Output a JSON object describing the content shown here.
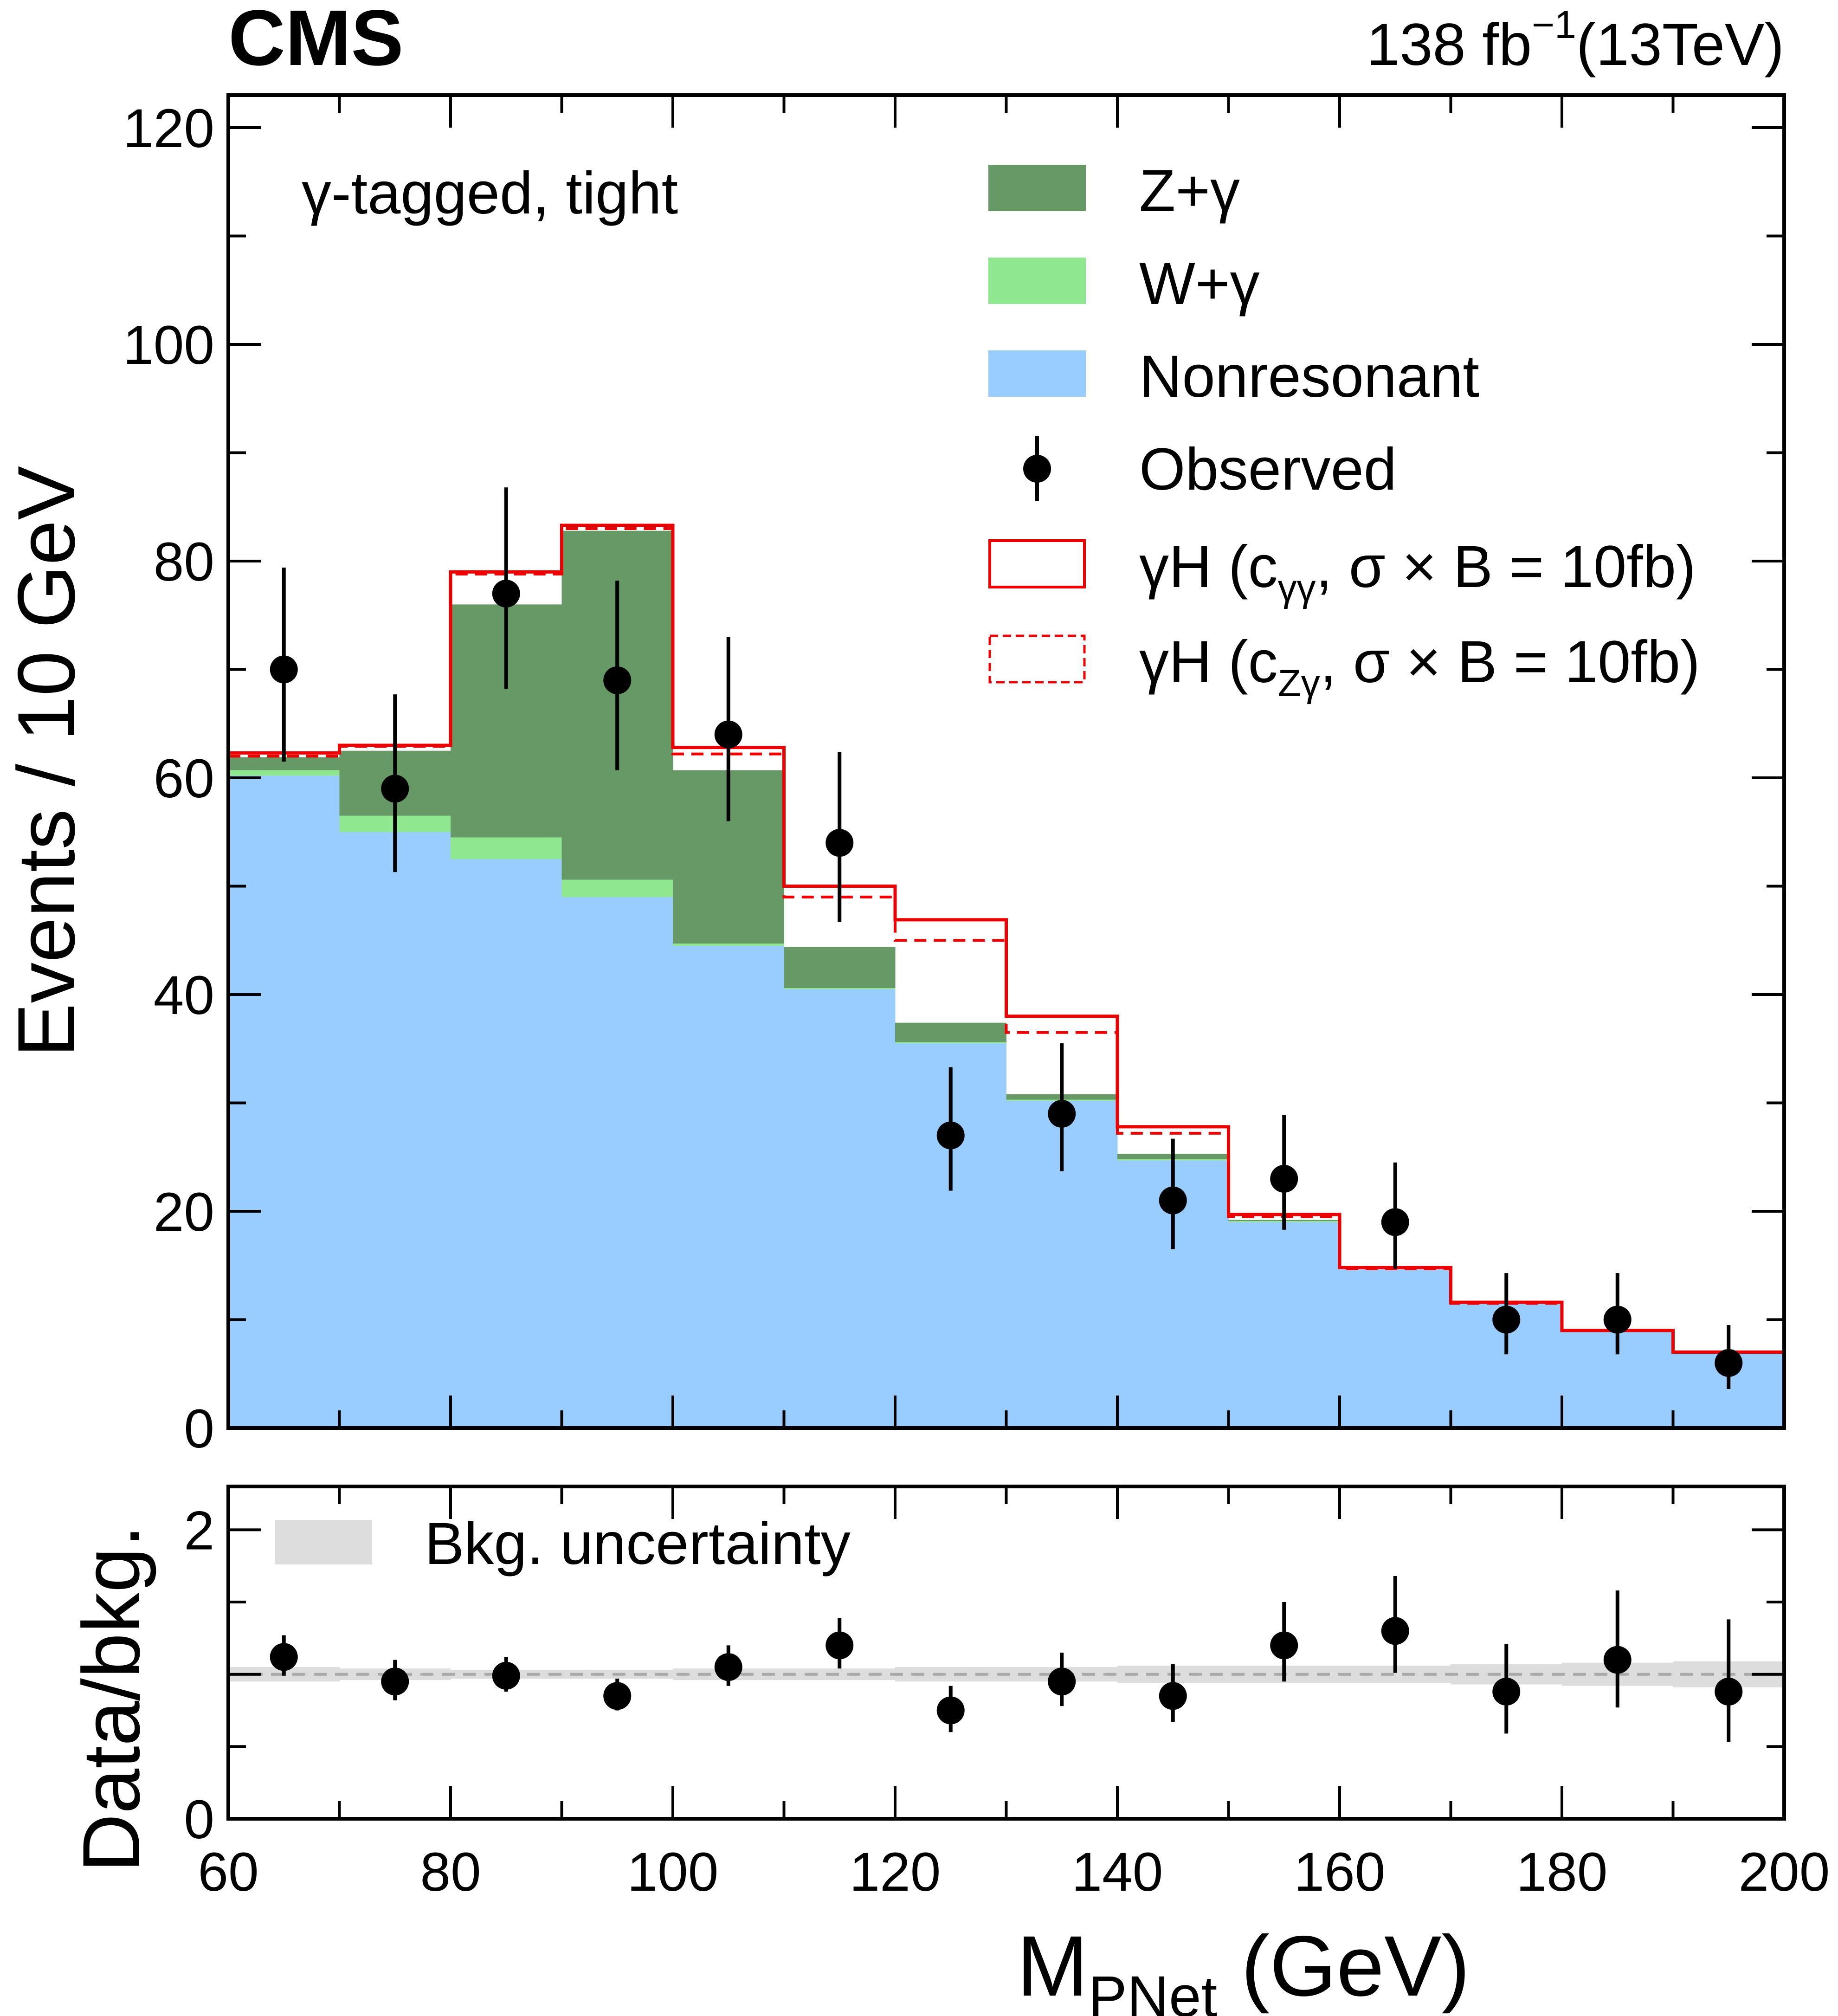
{
  "colors": {
    "z_gamma": "#669966",
    "w_gamma": "#8fe88f",
    "nonresonant": "#99ccff",
    "signal": "#ee0000",
    "observed": "#000000",
    "bkg_uncertainty": "#dddddd",
    "unity_line": "#aaaaaa"
  },
  "header": {
    "experiment": "CMS",
    "lumi": "138 fb",
    "lumi_exp": "−1",
    "energy": "(13TeV)"
  },
  "chart_data": [
    {
      "type": "bar",
      "subtype": "stacked-histogram",
      "annotation": "γ-tagged, tight",
      "ylabel": "Events / 10 GeV",
      "xlim": [
        60,
        200
      ],
      "ylim": [
        0,
        123
      ],
      "y_ticks": [
        0,
        20,
        40,
        60,
        80,
        100,
        120
      ],
      "bin_edges": [
        60,
        70,
        80,
        90,
        100,
        110,
        120,
        130,
        140,
        150,
        160,
        170,
        180,
        190,
        200
      ],
      "legend": {
        "position": "top-right",
        "z_gamma": "Z+γ",
        "w_gamma": "W+γ",
        "nonresonant": "Nonresonant",
        "observed": "Observed",
        "signal_cgg": {
          "pre": "γH (c",
          "sub": "γγ",
          "post": ",  σ × B = 10fb)"
        },
        "signal_czg": {
          "pre": "γH (c",
          "sub": "Zγ",
          "post": ",  σ × B = 10fb)"
        }
      },
      "stack": [
        {
          "key": "nonresonant",
          "values": [
            60.2,
            55.0,
            52.5,
            49.0,
            44.5,
            40.5,
            35.5,
            30.2,
            24.7,
            19.0,
            14.7,
            11.5,
            9.0,
            7.0
          ]
        },
        {
          "key": "w_gamma",
          "values": [
            0.5,
            1.5,
            2.0,
            1.6,
            0.2,
            0.1,
            0.1,
            0.1,
            0.1,
            0.1,
            0.05,
            0.05,
            0.05,
            0.05
          ]
        },
        {
          "key": "z_gamma",
          "values": [
            1.2,
            6.0,
            21.5,
            32.2,
            16.0,
            3.8,
            1.8,
            0.5,
            0.5,
            0.1,
            0.05,
            0.05,
            0.05,
            0.05
          ]
        }
      ],
      "signal_cgg": [
        62.3,
        63.0,
        79.0,
        83.3,
        62.8,
        50.0,
        46.9,
        38.0,
        27.8,
        19.7,
        14.8,
        11.6,
        9.0,
        7.0
      ],
      "signal_czg": [
        62.0,
        62.9,
        78.8,
        83.0,
        62.2,
        49.0,
        45.0,
        36.5,
        27.2,
        19.5,
        14.7,
        11.5,
        9.0,
        7.0
      ],
      "observed": {
        "x": [
          65,
          75,
          85,
          95,
          105,
          115,
          125,
          135,
          145,
          155,
          165,
          175,
          185,
          195
        ],
        "y": [
          70,
          59,
          77,
          69,
          64,
          54,
          27,
          29,
          21,
          23,
          19,
          10,
          10,
          6
        ],
        "err_low": [
          8.5,
          7.7,
          8.8,
          8.3,
          8.0,
          7.3,
          5.1,
          5.3,
          4.5,
          4.7,
          4.3,
          3.2,
          3.2,
          2.4
        ],
        "err_high": [
          9.4,
          8.7,
          9.8,
          9.2,
          9.0,
          8.4,
          6.3,
          6.5,
          5.7,
          5.9,
          5.5,
          4.3,
          4.3,
          3.5
        ]
      }
    },
    {
      "type": "scatter",
      "subtype": "ratio",
      "xlabel": "M",
      "xlabel_sub": "PNet",
      "xlabel_unit": " (GeV)",
      "ylabel": "Data/bkg.",
      "xlim": [
        60,
        200
      ],
      "ylim": [
        0,
        2.3
      ],
      "x_ticks": [
        60,
        80,
        100,
        120,
        140,
        160,
        180,
        200
      ],
      "y_ticks": [
        0,
        1,
        2
      ],
      "y_tick_labels": [
        "0",
        "",
        "2"
      ],
      "legend": {
        "position": "top-left",
        "bkg_uncertainty": "Bkg. uncertainty"
      },
      "reference_line": 1.0,
      "uncertainty_band": [
        0.05,
        0.04,
        0.03,
        0.03,
        0.04,
        0.04,
        0.05,
        0.05,
        0.06,
        0.06,
        0.06,
        0.07,
        0.08,
        0.09
      ],
      "points": {
        "x": [
          65,
          75,
          85,
          95,
          105,
          115,
          125,
          135,
          145,
          155,
          165,
          175,
          185,
          195
        ],
        "y": [
          1.12,
          0.95,
          0.99,
          0.85,
          1.05,
          1.2,
          0.75,
          0.95,
          0.85,
          1.2,
          1.3,
          0.88,
          1.1,
          0.88
        ],
        "err_low": [
          0.13,
          0.13,
          0.11,
          0.1,
          0.13,
          0.16,
          0.15,
          0.17,
          0.18,
          0.25,
          0.29,
          0.29,
          0.33,
          0.35
        ],
        "err_high": [
          0.15,
          0.15,
          0.13,
          0.12,
          0.15,
          0.19,
          0.17,
          0.2,
          0.22,
          0.3,
          0.38,
          0.33,
          0.48,
          0.5
        ]
      }
    }
  ]
}
